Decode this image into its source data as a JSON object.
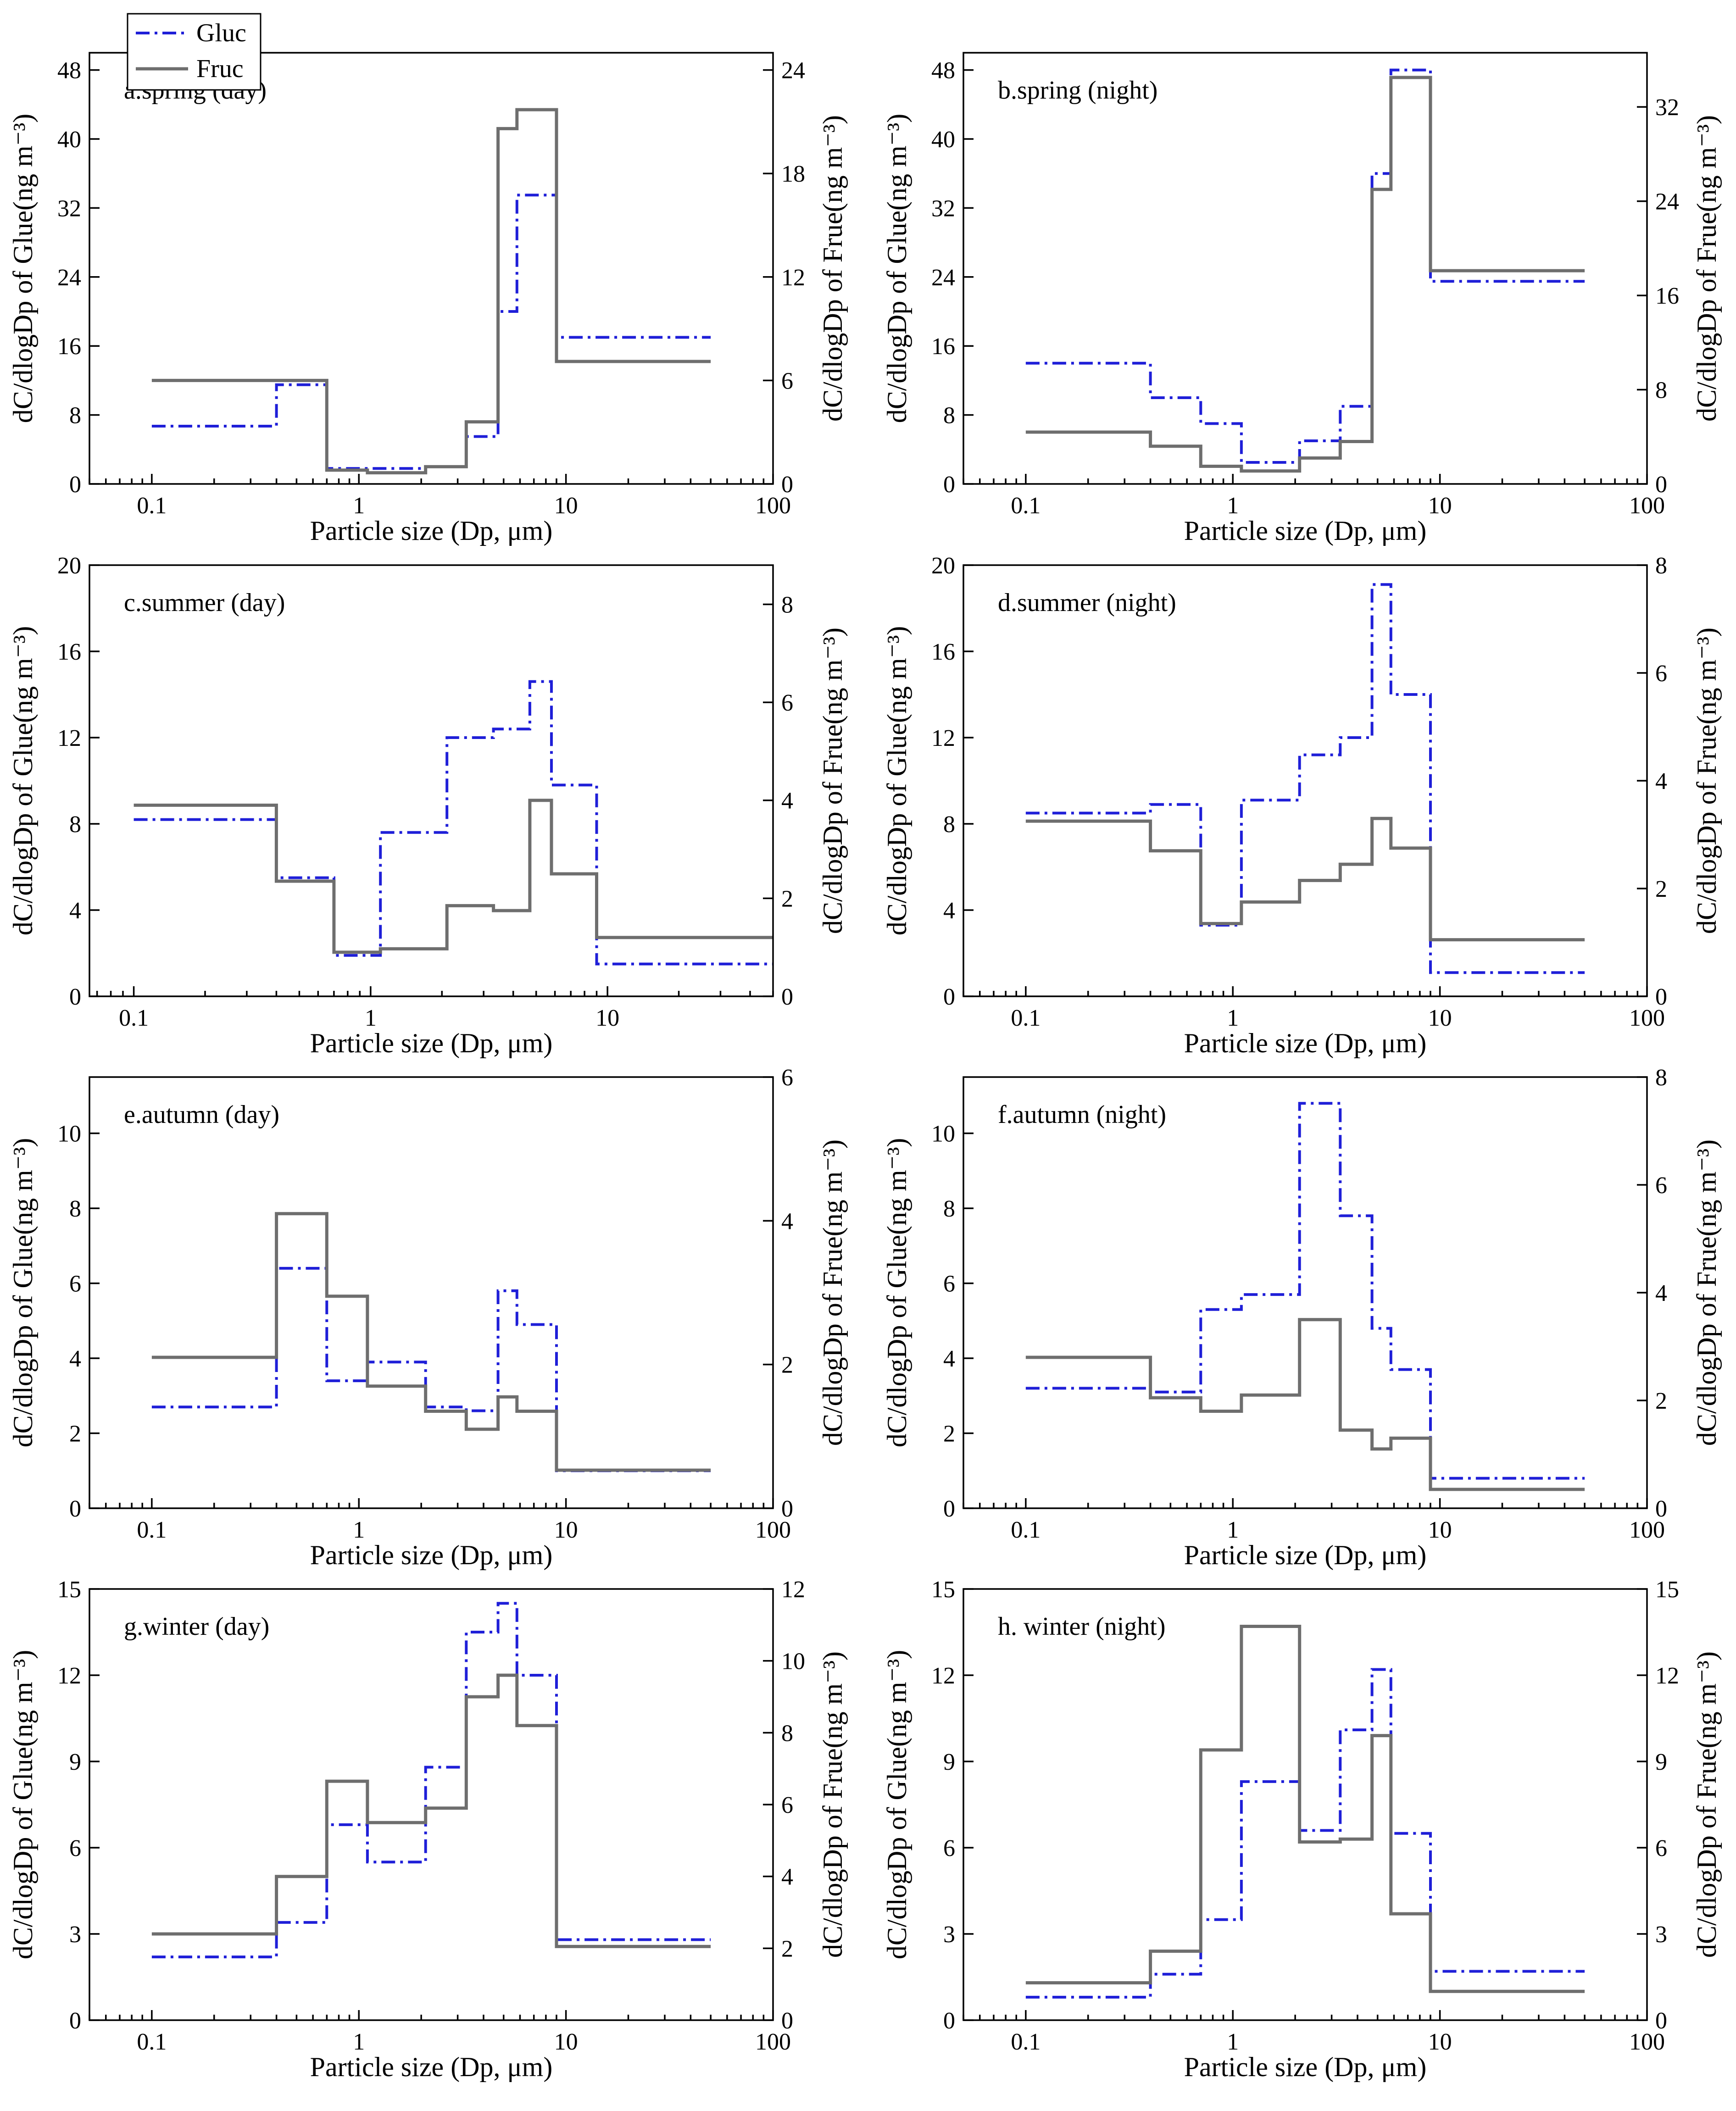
{
  "legend": {
    "entries": [
      {
        "name": "Gluc",
        "color": "#1f1fd8"
      },
      {
        "name": "Fruc",
        "color": "#6e6e6e"
      }
    ]
  },
  "chart_data": [
    {
      "type": "line",
      "title": "a.spring (day)",
      "xlabel": "Particle size (Dp, μm)",
      "ylabel": "dC/dlogDp of Glue(ng m⁻³)",
      "y2label": "dC/dlogDp of Frue(ng m⁻³)",
      "xscale": "log",
      "xlim": [
        0.05,
        100
      ],
      "xticks": [
        0.1,
        1,
        10,
        100
      ],
      "xticklabels": [
        "0.1",
        "1",
        "10",
        "100"
      ],
      "ylim": [
        0,
        50
      ],
      "yticks": [
        0,
        8,
        16,
        24,
        32,
        40,
        48
      ],
      "y2lim": [
        0,
        25
      ],
      "y2ticks": [
        0,
        6,
        12,
        18,
        24
      ],
      "bin_edges": [
        0.1,
        0.4,
        0.7,
        1.1,
        2.1,
        3.3,
        4.7,
        5.8,
        9.0,
        50
      ],
      "series": [
        {
          "name": "Gluc",
          "axis": "left",
          "values": [
            6.7,
            11.5,
            1.8,
            1.8,
            2.0,
            5.5,
            20.0,
            33.5,
            17.0
          ]
        },
        {
          "name": "Fruc",
          "axis": "right",
          "values": [
            6.0,
            6.0,
            0.8,
            0.65,
            1.0,
            3.6,
            20.6,
            21.7,
            7.1
          ]
        }
      ]
    },
    {
      "type": "line",
      "title": "b.spring (night)",
      "xlabel": "Particle size (Dp, μm)",
      "ylabel": "dC/dlogDp of Glue(ng m⁻³)",
      "y2label": "dC/dlogDp of Frue(ng m⁻³)",
      "xscale": "log",
      "xlim": [
        0.05,
        100
      ],
      "xticks": [
        0.1,
        1,
        10,
        100
      ],
      "xticklabels": [
        "0.1",
        "1",
        "10",
        "100"
      ],
      "ylim": [
        0,
        50
      ],
      "yticks": [
        0,
        8,
        16,
        24,
        32,
        40,
        48
      ],
      "y2lim": [
        0,
        36.6
      ],
      "y2ticks": [
        0,
        8,
        16,
        24,
        32
      ],
      "bin_edges": [
        0.1,
        0.4,
        0.7,
        1.1,
        2.1,
        3.3,
        4.7,
        5.8,
        9.0,
        50
      ],
      "series": [
        {
          "name": "Gluc",
          "axis": "left",
          "values": [
            14.0,
            10.0,
            7.0,
            2.5,
            5.0,
            9.0,
            36.0,
            48.0,
            23.5
          ]
        },
        {
          "name": "Fruc",
          "axis": "right",
          "values": [
            4.4,
            3.2,
            1.5,
            1.1,
            2.2,
            3.6,
            25.0,
            34.5,
            18.1
          ]
        }
      ]
    },
    {
      "type": "line",
      "title": "c.summer (day)",
      "xlabel": "Particle size (Dp, μm)",
      "ylabel": "dC/dlogDp of Glue(ng m⁻³)",
      "y2label": "dC/dlogDp of Frue(ng m⁻³)",
      "xscale": "log",
      "xlim": [
        0.065,
        50
      ],
      "xticks": [
        0.1,
        1,
        10
      ],
      "xticklabels": [
        "0.1",
        "1",
        "10"
      ],
      "ylim": [
        0,
        20
      ],
      "yticks": [
        0,
        4,
        8,
        12,
        16,
        20
      ],
      "y2lim": [
        0,
        8.8
      ],
      "y2ticks": [
        0,
        2,
        4,
        6,
        8
      ],
      "bin_edges": [
        0.1,
        0.4,
        0.7,
        1.1,
        2.1,
        3.3,
        4.7,
        5.8,
        9.0,
        50
      ],
      "series": [
        {
          "name": "Gluc",
          "axis": "left",
          "values": [
            8.2,
            5.5,
            1.9,
            7.6,
            12.0,
            12.4,
            14.6,
            9.8,
            1.5
          ]
        },
        {
          "name": "Fruc",
          "axis": "right",
          "values": [
            3.9,
            2.35,
            0.9,
            0.97,
            1.85,
            1.75,
            4.0,
            2.5,
            1.2
          ]
        }
      ]
    },
    {
      "type": "line",
      "title": "d.summer (night)",
      "xlabel": "Particle size (Dp, μm)",
      "ylabel": "dC/dlogDp of Glue(ng m⁻³)",
      "y2label": "dC/dlogDp of Frue(ng m⁻³)",
      "xscale": "log",
      "xlim": [
        0.05,
        100
      ],
      "xticks": [
        0.1,
        1,
        10,
        100
      ],
      "xticklabels": [
        "0.1",
        "1",
        "10",
        "100"
      ],
      "ylim": [
        0,
        20
      ],
      "yticks": [
        0,
        4,
        8,
        12,
        16,
        20
      ],
      "y2lim": [
        0,
        8
      ],
      "y2ticks": [
        0,
        2,
        4,
        6,
        8
      ],
      "bin_edges": [
        0.1,
        0.4,
        0.7,
        1.1,
        2.1,
        3.3,
        4.7,
        5.8,
        9.0,
        50
      ],
      "series": [
        {
          "name": "Gluc",
          "axis": "left",
          "values": [
            8.5,
            8.9,
            3.3,
            9.1,
            11.2,
            12.0,
            19.1,
            14.0,
            1.1
          ]
        },
        {
          "name": "Fruc",
          "axis": "right",
          "values": [
            3.25,
            2.7,
            1.35,
            1.75,
            2.15,
            2.45,
            3.3,
            2.75,
            1.05
          ]
        }
      ]
    },
    {
      "type": "line",
      "title": "e.autumn (day)",
      "xlabel": "Particle size (Dp, μm)",
      "ylabel": "dC/dlogDp of Glue(ng m⁻³)",
      "y2label": "dC/dlogDp of Frue(ng m⁻³)",
      "xscale": "log",
      "xlim": [
        0.05,
        100
      ],
      "xticks": [
        0.1,
        1,
        10,
        100
      ],
      "xticklabels": [
        "0.1",
        "1",
        "10",
        "100"
      ],
      "ylim": [
        0,
        11.5
      ],
      "yticks": [
        0,
        2,
        4,
        6,
        8,
        10
      ],
      "y2lim": [
        0,
        6
      ],
      "y2ticks": [
        0,
        2,
        4,
        6
      ],
      "bin_edges": [
        0.1,
        0.4,
        0.7,
        1.1,
        2.1,
        3.3,
        4.7,
        5.8,
        9.0,
        50
      ],
      "series": [
        {
          "name": "Gluc",
          "axis": "left",
          "values": [
            2.7,
            6.4,
            3.4,
            3.9,
            2.7,
            2.6,
            5.8,
            4.9,
            1.0
          ]
        },
        {
          "name": "Fruc",
          "axis": "right",
          "values": [
            2.1,
            4.1,
            2.95,
            1.7,
            1.35,
            1.1,
            1.55,
            1.35,
            0.53
          ]
        }
      ]
    },
    {
      "type": "line",
      "title": "f.autumn (night)",
      "xlabel": "Particle size (Dp, μm)",
      "ylabel": "dC/dlogDp of Glue(ng m⁻³)",
      "y2label": "dC/dlogDp of Frue(ng m⁻³)",
      "xscale": "log",
      "xlim": [
        0.05,
        100
      ],
      "xticks": [
        0.1,
        1,
        10,
        100
      ],
      "xticklabels": [
        "0.1",
        "1",
        "10",
        "100"
      ],
      "ylim": [
        0,
        11.5
      ],
      "yticks": [
        0,
        2,
        4,
        6,
        8,
        10
      ],
      "y2lim": [
        0,
        8
      ],
      "y2ticks": [
        0,
        2,
        4,
        6,
        8
      ],
      "bin_edges": [
        0.1,
        0.4,
        0.7,
        1.1,
        2.1,
        3.3,
        4.7,
        5.8,
        9.0,
        50
      ],
      "series": [
        {
          "name": "Gluc",
          "axis": "left",
          "values": [
            3.2,
            3.1,
            5.3,
            5.7,
            10.8,
            7.8,
            4.8,
            3.7,
            0.8
          ]
        },
        {
          "name": "Fruc",
          "axis": "right",
          "values": [
            2.8,
            2.05,
            1.8,
            2.1,
            3.5,
            1.45,
            1.1,
            1.3,
            0.35
          ]
        }
      ]
    },
    {
      "type": "line",
      "title": "g.winter (day)",
      "xlabel": "Particle size (Dp, μm)",
      "ylabel": "dC/dlogDp of Glue(ng m⁻³)",
      "y2label": "dC/dlogDp of Frue(ng m⁻³)",
      "xscale": "log",
      "xlim": [
        0.05,
        100
      ],
      "xticks": [
        0.1,
        1,
        10,
        100
      ],
      "xticklabels": [
        "0.1",
        "1",
        "10",
        "100"
      ],
      "ylim": [
        0,
        15
      ],
      "yticks": [
        0,
        3,
        6,
        9,
        12,
        15
      ],
      "y2lim": [
        0,
        12
      ],
      "y2ticks": [
        0,
        2,
        4,
        6,
        8,
        10,
        12
      ],
      "bin_edges": [
        0.1,
        0.4,
        0.7,
        1.1,
        2.1,
        3.3,
        4.7,
        5.8,
        9.0,
        50
      ],
      "series": [
        {
          "name": "Gluc",
          "axis": "left",
          "values": [
            2.2,
            3.4,
            6.8,
            5.5,
            8.8,
            13.5,
            14.5,
            12.0,
            2.8
          ]
        },
        {
          "name": "Fruc",
          "axis": "right",
          "values": [
            2.4,
            4.0,
            6.65,
            5.5,
            5.9,
            9.0,
            9.6,
            8.2,
            2.05
          ]
        }
      ]
    },
    {
      "type": "line",
      "title": "h. winter (night)",
      "xlabel": "Particle size (Dp, μm)",
      "ylabel": "dC/dlogDp of Glue(ng m⁻³)",
      "y2label": "dC/dlogDp of Frue(ng m⁻³)",
      "xscale": "log",
      "xlim": [
        0.05,
        100
      ],
      "xticks": [
        0.1,
        1,
        10,
        100
      ],
      "xticklabels": [
        "0.1",
        "1",
        "10",
        "100"
      ],
      "ylim": [
        0,
        15
      ],
      "yticks": [
        0,
        3,
        6,
        9,
        12,
        15
      ],
      "y2lim": [
        0,
        15
      ],
      "y2ticks": [
        0,
        3,
        6,
        9,
        12,
        15
      ],
      "bin_edges": [
        0.1,
        0.4,
        0.7,
        1.1,
        2.1,
        3.3,
        4.7,
        5.8,
        9.0,
        50
      ],
      "series": [
        {
          "name": "Gluc",
          "axis": "left",
          "values": [
            0.8,
            1.6,
            3.5,
            8.3,
            6.6,
            10.1,
            12.2,
            6.5,
            1.7
          ]
        },
        {
          "name": "Fruc",
          "axis": "right",
          "values": [
            1.3,
            2.4,
            9.4,
            13.7,
            6.2,
            6.3,
            9.9,
            3.7,
            1.0
          ]
        }
      ]
    }
  ]
}
